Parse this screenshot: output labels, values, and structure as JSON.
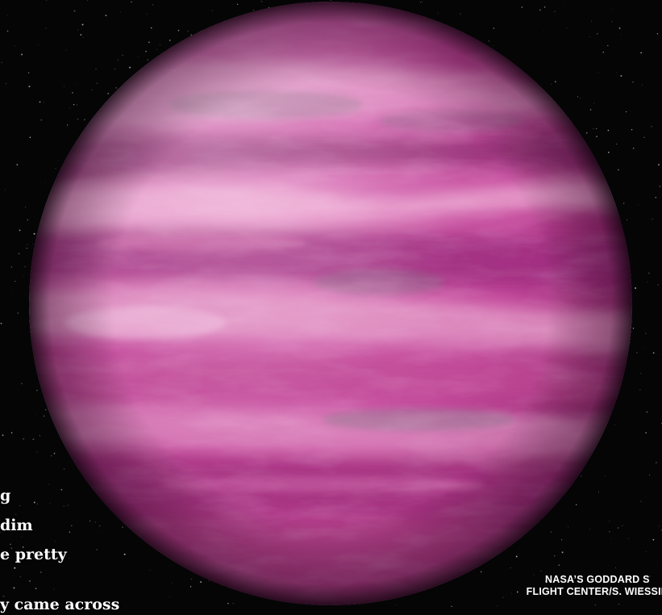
{
  "caption_fragments": [
    "g",
    "dim",
    "e pretty",
    "y came across"
  ],
  "credit": {
    "line1": "NASA’S GODDARD S",
    "line2": "FLIGHT CENTER/S. WIESSIN"
  },
  "colors": {
    "space": "#050505",
    "planet_base": "#c2469a",
    "band_light": "#e99bcc",
    "band_dark": "#8a1f6c",
    "caption_text": "#ffffff"
  }
}
